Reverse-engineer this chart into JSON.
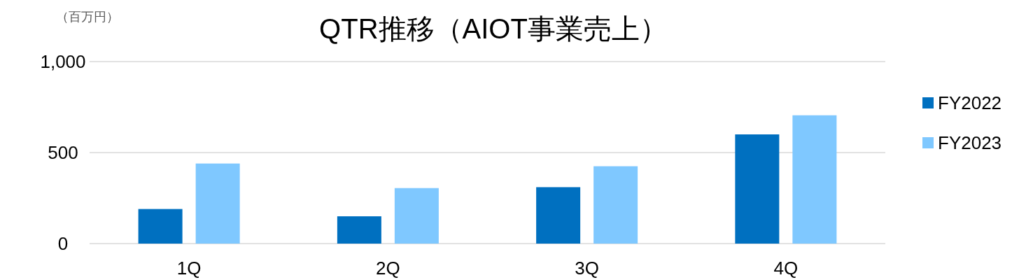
{
  "chart_data": {
    "type": "bar",
    "title": "QTR推移（AIOT事業売上）",
    "ylabel": "（百万円）",
    "categories": [
      "1Q",
      "2Q",
      "3Q",
      "4Q"
    ],
    "series": [
      {
        "name": "FY2022",
        "color": "#0070c0",
        "values": [
          190,
          150,
          310,
          600
        ]
      },
      {
        "name": "FY2023",
        "color": "#7fc8ff",
        "values": [
          440,
          305,
          425,
          705
        ]
      }
    ],
    "ylim": [
      0,
      1000
    ],
    "yticks": [
      0,
      500,
      {
        "value": 1000,
        "label": "1,000"
      }
    ],
    "grid": "y",
    "legend": "right"
  }
}
